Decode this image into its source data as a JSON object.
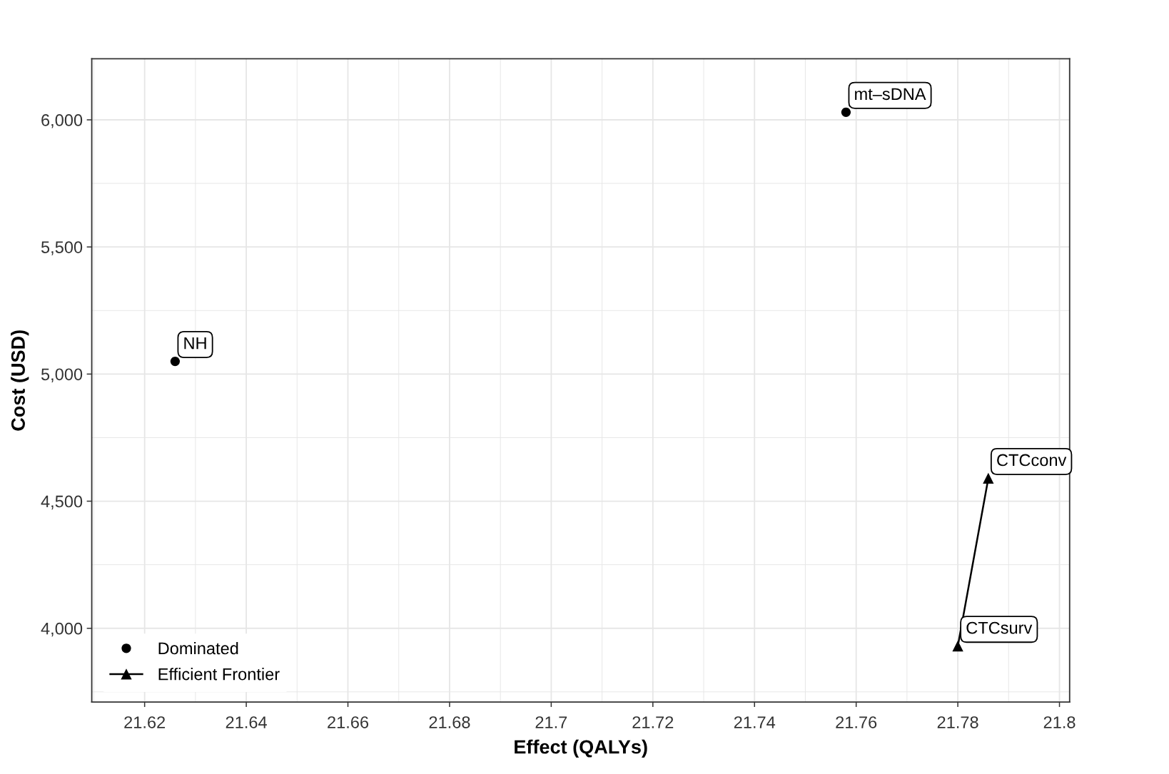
{
  "chart_data": {
    "type": "scatter",
    "xlabel": "Effect (QALYs)",
    "ylabel": "Cost (USD)",
    "series": [
      {
        "name": "Dominated",
        "marker": "circle",
        "color": "#000000",
        "x": [
          21.626,
          21.758
        ],
        "values": [
          5050,
          6030
        ]
      },
      {
        "name": "Efficient Frontier",
        "type": "line",
        "marker": "triangle",
        "color": "#000000",
        "x": [
          21.78,
          21.786
        ],
        "values": [
          3930,
          4590
        ]
      }
    ],
    "annotations": [
      {
        "text": "NH",
        "x": 21.626,
        "y": 5050
      },
      {
        "text": "mt–sDNA",
        "x": 21.758,
        "y": 6030
      },
      {
        "text": "CTCsurv",
        "x": 21.78,
        "y": 3930
      },
      {
        "text": "CTCconv",
        "x": 21.786,
        "y": 4590
      }
    ],
    "xlim": [
      21.6096,
      21.802
    ],
    "ylim": [
      3710,
      6240
    ],
    "xticks": [
      21.62,
      21.64,
      21.66,
      21.68,
      21.7,
      21.72,
      21.74,
      21.76,
      21.78,
      21.8
    ],
    "yticks": [
      {
        "value": 4000,
        "label": "4,000"
      },
      {
        "value": 4500,
        "label": "4,500"
      },
      {
        "value": 5000,
        "label": "5,000"
      },
      {
        "value": 5500,
        "label": "5,500"
      },
      {
        "value": 6000,
        "label": "6,000"
      }
    ],
    "grid": true,
    "legend": "bottom left"
  }
}
